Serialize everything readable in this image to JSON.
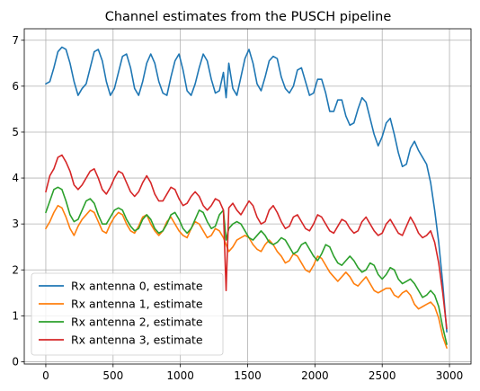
{
  "chart_data": {
    "type": "line",
    "title": "Channel estimates from the PUSCH pipeline",
    "xlabel": "",
    "ylabel": "",
    "xlim": [
      -160,
      3160
    ],
    "ylim": [
      -0.05,
      7.25
    ],
    "xticks": [
      0,
      500,
      1000,
      1500,
      2000,
      2500,
      3000
    ],
    "yticks": [
      0,
      1,
      2,
      3,
      4,
      5,
      6,
      7
    ],
    "grid": true,
    "legend_position": "lower-left",
    "series": [
      {
        "name": "Rx antenna 0, estimate",
        "color": "#1f77b4",
        "x": [
          0,
          30,
          60,
          90,
          120,
          150,
          180,
          210,
          240,
          270,
          300,
          330,
          360,
          390,
          420,
          450,
          480,
          510,
          540,
          570,
          600,
          630,
          660,
          690,
          720,
          750,
          780,
          810,
          840,
          870,
          900,
          930,
          960,
          990,
          1020,
          1050,
          1080,
          1110,
          1140,
          1170,
          1200,
          1230,
          1260,
          1290,
          1320,
          1340,
          1360,
          1390,
          1420,
          1450,
          1480,
          1510,
          1540,
          1570,
          1600,
          1630,
          1660,
          1690,
          1720,
          1750,
          1780,
          1810,
          1840,
          1870,
          1900,
          1930,
          1960,
          1990,
          2020,
          2050,
          2080,
          2110,
          2140,
          2170,
          2200,
          2230,
          2260,
          2290,
          2320,
          2350,
          2380,
          2410,
          2440,
          2470,
          2500,
          2530,
          2560,
          2590,
          2620,
          2650,
          2680,
          2710,
          2740,
          2770,
          2800,
          2830,
          2860,
          2890,
          2920,
          2950,
          2980
        ],
        "values": [
          6.05,
          6.1,
          6.4,
          6.75,
          6.85,
          6.8,
          6.5,
          6.1,
          5.8,
          5.95,
          6.05,
          6.4,
          6.75,
          6.8,
          6.55,
          6.1,
          5.8,
          5.95,
          6.3,
          6.65,
          6.7,
          6.4,
          5.95,
          5.8,
          6.1,
          6.5,
          6.7,
          6.5,
          6.1,
          5.85,
          5.8,
          6.2,
          6.55,
          6.7,
          6.35,
          5.9,
          5.8,
          6.05,
          6.4,
          6.7,
          6.55,
          6.15,
          5.85,
          5.9,
          6.3,
          5.75,
          6.5,
          5.95,
          5.8,
          6.2,
          6.6,
          6.8,
          6.5,
          6.05,
          5.9,
          6.2,
          6.55,
          6.65,
          6.6,
          6.2,
          5.95,
          5.85,
          6.0,
          6.35,
          6.4,
          6.1,
          5.8,
          5.85,
          6.15,
          6.15,
          5.85,
          5.45,
          5.45,
          5.7,
          5.7,
          5.35,
          5.15,
          5.2,
          5.5,
          5.75,
          5.65,
          5.3,
          4.95,
          4.7,
          4.9,
          5.2,
          5.3,
          4.95,
          4.55,
          4.25,
          4.3,
          4.65,
          4.8,
          4.6,
          4.45,
          4.3,
          3.9,
          3.3,
          2.6,
          1.7,
          0.65
        ]
      },
      {
        "name": "Rx antenna 1, estimate",
        "color": "#ff7f0e",
        "x": [
          0,
          30,
          60,
          90,
          120,
          150,
          180,
          210,
          240,
          270,
          300,
          330,
          360,
          390,
          420,
          450,
          480,
          510,
          540,
          570,
          600,
          630,
          660,
          690,
          720,
          750,
          780,
          810,
          840,
          870,
          900,
          930,
          960,
          990,
          1020,
          1050,
          1080,
          1110,
          1140,
          1170,
          1200,
          1230,
          1260,
          1290,
          1320,
          1340,
          1360,
          1390,
          1420,
          1450,
          1480,
          1510,
          1540,
          1570,
          1600,
          1630,
          1660,
          1690,
          1720,
          1750,
          1780,
          1810,
          1840,
          1870,
          1900,
          1930,
          1960,
          1990,
          2020,
          2050,
          2080,
          2110,
          2140,
          2170,
          2200,
          2230,
          2260,
          2290,
          2320,
          2350,
          2380,
          2410,
          2440,
          2470,
          2500,
          2530,
          2560,
          2590,
          2620,
          2650,
          2680,
          2710,
          2740,
          2770,
          2800,
          2830,
          2860,
          2890,
          2920,
          2950,
          2980
        ],
        "values": [
          2.9,
          3.05,
          3.25,
          3.4,
          3.35,
          3.15,
          2.9,
          2.75,
          2.95,
          3.1,
          3.2,
          3.3,
          3.25,
          3.05,
          2.85,
          2.8,
          3.0,
          3.15,
          3.25,
          3.2,
          3.0,
          2.85,
          2.8,
          2.95,
          3.15,
          3.2,
          3.0,
          2.85,
          2.75,
          2.85,
          3.05,
          3.15,
          3.0,
          2.85,
          2.75,
          2.7,
          2.9,
          3.05,
          3.0,
          2.85,
          2.7,
          2.75,
          2.9,
          2.85,
          2.7,
          2.55,
          2.4,
          2.5,
          2.65,
          2.7,
          2.75,
          2.7,
          2.55,
          2.45,
          2.4,
          2.55,
          2.65,
          2.55,
          2.4,
          2.3,
          2.15,
          2.2,
          2.35,
          2.3,
          2.15,
          2.0,
          1.95,
          2.1,
          2.3,
          2.25,
          2.1,
          1.95,
          1.85,
          1.75,
          1.85,
          1.95,
          1.85,
          1.7,
          1.65,
          1.75,
          1.85,
          1.7,
          1.55,
          1.5,
          1.55,
          1.6,
          1.6,
          1.45,
          1.4,
          1.5,
          1.55,
          1.45,
          1.25,
          1.15,
          1.2,
          1.25,
          1.3,
          1.2,
          0.95,
          0.55,
          0.3
        ]
      },
      {
        "name": "Rx antenna 2, estimate",
        "color": "#2ca02c",
        "x": [
          0,
          30,
          60,
          90,
          120,
          150,
          180,
          210,
          240,
          270,
          300,
          330,
          360,
          390,
          420,
          450,
          480,
          510,
          540,
          570,
          600,
          630,
          660,
          690,
          720,
          750,
          780,
          810,
          840,
          870,
          900,
          930,
          960,
          990,
          1020,
          1050,
          1080,
          1110,
          1140,
          1170,
          1200,
          1230,
          1260,
          1290,
          1320,
          1340,
          1360,
          1390,
          1420,
          1450,
          1480,
          1510,
          1540,
          1570,
          1600,
          1630,
          1660,
          1690,
          1720,
          1750,
          1780,
          1810,
          1840,
          1870,
          1900,
          1930,
          1960,
          1990,
          2020,
          2050,
          2080,
          2110,
          2140,
          2170,
          2200,
          2230,
          2260,
          2290,
          2320,
          2350,
          2380,
          2410,
          2440,
          2470,
          2500,
          2530,
          2560,
          2590,
          2620,
          2650,
          2680,
          2710,
          2740,
          2770,
          2800,
          2830,
          2860,
          2890,
          2920,
          2950,
          2980
        ],
        "values": [
          3.25,
          3.5,
          3.75,
          3.8,
          3.75,
          3.5,
          3.2,
          3.05,
          3.1,
          3.3,
          3.5,
          3.55,
          3.45,
          3.2,
          3.0,
          3.0,
          3.15,
          3.3,
          3.35,
          3.3,
          3.1,
          2.95,
          2.85,
          2.9,
          3.1,
          3.2,
          3.1,
          2.9,
          2.8,
          2.85,
          3.0,
          3.2,
          3.25,
          3.1,
          2.9,
          2.8,
          2.9,
          3.1,
          3.3,
          3.25,
          3.05,
          2.9,
          2.95,
          3.2,
          3.3,
          2.65,
          2.9,
          3.0,
          3.05,
          3.0,
          2.85,
          2.7,
          2.65,
          2.75,
          2.85,
          2.75,
          2.6,
          2.55,
          2.6,
          2.7,
          2.65,
          2.5,
          2.35,
          2.4,
          2.55,
          2.6,
          2.45,
          2.3,
          2.2,
          2.35,
          2.55,
          2.5,
          2.3,
          2.15,
          2.1,
          2.2,
          2.3,
          2.2,
          2.05,
          1.95,
          2.0,
          2.15,
          2.1,
          1.9,
          1.8,
          1.9,
          2.05,
          2.0,
          1.8,
          1.7,
          1.75,
          1.8,
          1.7,
          1.55,
          1.4,
          1.45,
          1.55,
          1.45,
          1.2,
          0.75,
          0.38
        ]
      },
      {
        "name": "Rx antenna 3, estimate",
        "color": "#d62728",
        "x": [
          0,
          30,
          60,
          90,
          120,
          150,
          180,
          210,
          240,
          270,
          300,
          330,
          360,
          390,
          420,
          450,
          480,
          510,
          540,
          570,
          600,
          630,
          660,
          690,
          720,
          750,
          780,
          810,
          840,
          870,
          900,
          930,
          960,
          990,
          1020,
          1050,
          1080,
          1110,
          1140,
          1170,
          1200,
          1230,
          1260,
          1290,
          1320,
          1340,
          1360,
          1390,
          1420,
          1450,
          1480,
          1510,
          1540,
          1570,
          1600,
          1630,
          1660,
          1690,
          1720,
          1750,
          1780,
          1810,
          1840,
          1870,
          1900,
          1930,
          1960,
          1990,
          2020,
          2050,
          2080,
          2110,
          2140,
          2170,
          2200,
          2230,
          2260,
          2290,
          2320,
          2350,
          2380,
          2410,
          2440,
          2470,
          2500,
          2530,
          2560,
          2590,
          2620,
          2650,
          2680,
          2710,
          2740,
          2770,
          2800,
          2830,
          2860,
          2890,
          2920,
          2950,
          2980
        ],
        "values": [
          3.7,
          4.05,
          4.2,
          4.45,
          4.5,
          4.35,
          4.15,
          3.85,
          3.75,
          3.85,
          4.0,
          4.15,
          4.2,
          4.0,
          3.75,
          3.65,
          3.8,
          4.0,
          4.15,
          4.1,
          3.9,
          3.7,
          3.6,
          3.7,
          3.9,
          4.05,
          3.9,
          3.65,
          3.5,
          3.5,
          3.65,
          3.8,
          3.75,
          3.55,
          3.4,
          3.45,
          3.6,
          3.7,
          3.6,
          3.4,
          3.3,
          3.4,
          3.55,
          3.5,
          3.3,
          1.55,
          3.35,
          3.45,
          3.3,
          3.2,
          3.35,
          3.5,
          3.4,
          3.15,
          3.0,
          3.05,
          3.3,
          3.4,
          3.25,
          3.05,
          2.9,
          2.95,
          3.15,
          3.2,
          3.05,
          2.9,
          2.85,
          3.0,
          3.2,
          3.15,
          3.0,
          2.85,
          2.8,
          2.95,
          3.1,
          3.05,
          2.9,
          2.8,
          2.85,
          3.05,
          3.15,
          3.0,
          2.85,
          2.75,
          2.8,
          3.0,
          3.1,
          2.95,
          2.8,
          2.75,
          2.95,
          3.15,
          3.0,
          2.8,
          2.7,
          2.75,
          2.85,
          2.6,
          2.15,
          1.5,
          0.72
        ]
      }
    ]
  }
}
